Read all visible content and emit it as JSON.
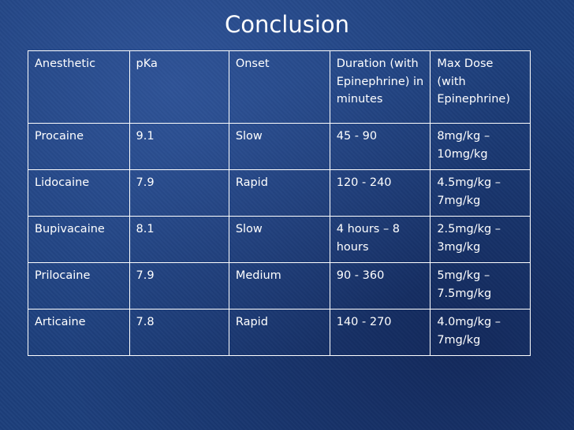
{
  "slide": {
    "title": "Conclusion"
  },
  "table": {
    "headers": [
      "Anesthetic",
      "pKa",
      "Onset",
      "Duration (with Epinephrine) in minutes",
      "Max Dose (with Epinephrine)"
    ],
    "rows": [
      [
        "Procaine",
        "9.1",
        "Slow",
        "45 - 90",
        "8mg/kg – 10mg/kg"
      ],
      [
        "Lidocaine",
        "7.9",
        "Rapid",
        "120 - 240",
        "4.5mg/kg – 7mg/kg"
      ],
      [
        "Bupivacaine",
        "8.1",
        "Slow",
        "4 hours – 8 hours",
        "2.5mg/kg – 3mg/kg"
      ],
      [
        "Prilocaine",
        "7.9",
        "Medium",
        "90 - 360",
        "5mg/kg – 7.5mg/kg"
      ],
      [
        "Articaine",
        "7.8",
        "Rapid",
        "140 - 270",
        "4.0mg/kg – 7mg/kg"
      ]
    ]
  },
  "colors": {
    "background": "#1d3f7c",
    "text": "#ffffff",
    "border": "#ffffff"
  }
}
